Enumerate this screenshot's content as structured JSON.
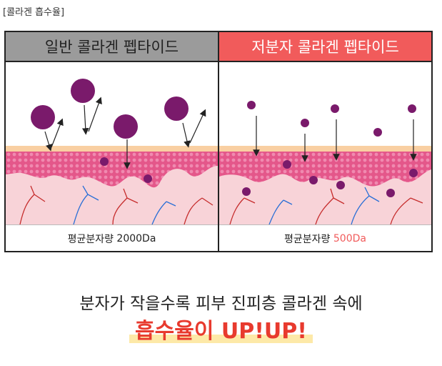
{
  "header_tag": "[콜라겐 흡수율]",
  "panels": {
    "left": {
      "title": "일반 콜라겐 펩타이드",
      "caption_label": "평균분자량",
      "caption_value": "2000Da"
    },
    "right": {
      "title": "저분자 콜라겐 펩타이드",
      "caption_label": "평균분자량",
      "caption_value": "500Da"
    }
  },
  "bottom": {
    "line1": "분자가 작을수록 피부 진피층 콜라겐 속에",
    "line2": "흡수율이 UP!UP!"
  },
  "colors": {
    "left_header": "#9b9b9b",
    "right_header": "#f15b5b",
    "molecule": "#7a1a6b",
    "skin_pink": "#f4b6c3",
    "skin_layer": "#e4578a",
    "emphasis": "#e83a2e"
  }
}
